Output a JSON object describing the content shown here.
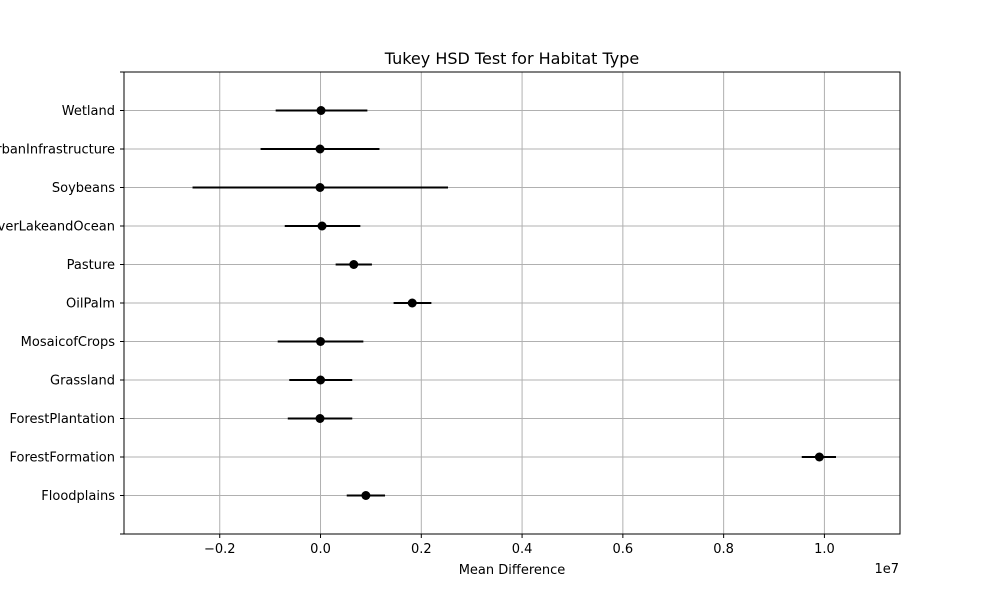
{
  "chart_data": {
    "type": "errorbar",
    "title": "Tukey HSD Test for Habitat Type",
    "xlabel": "Mean Difference",
    "ylabel": "",
    "x_offset_label": "1e7",
    "x_scale_factor": 10000000,
    "xlim": [
      -3900000,
      11500000
    ],
    "xticks": [
      -2000000,
      0,
      2000000,
      4000000,
      6000000,
      8000000,
      10000000
    ],
    "xtick_labels": [
      "−0.2",
      "0.0",
      "0.2",
      "0.4",
      "0.6",
      "0.8",
      "1.0"
    ],
    "grid": true,
    "marker_color": "#000000",
    "categories": [
      "Floodplains",
      "ForestFormation",
      "ForestPlantation",
      "Grassland",
      "MosaicofCrops",
      "OilPalm",
      "Pasture",
      "RiverLakeandOcean",
      "Soybeans",
      "UrbanInfrastructure",
      "Wetland"
    ],
    "points": [
      {
        "category": "Floodplains",
        "mean": 900000,
        "lower": 520000,
        "upper": 1280000
      },
      {
        "category": "ForestFormation",
        "mean": 9900000,
        "lower": 9550000,
        "upper": 10230000
      },
      {
        "category": "ForestPlantation",
        "mean": -10000,
        "lower": -650000,
        "upper": 630000
      },
      {
        "category": "Grassland",
        "mean": 0,
        "lower": -620000,
        "upper": 630000
      },
      {
        "category": "MosaicofCrops",
        "mean": 0,
        "lower": -850000,
        "upper": 850000
      },
      {
        "category": "OilPalm",
        "mean": 1820000,
        "lower": 1450000,
        "upper": 2200000
      },
      {
        "category": "Pasture",
        "mean": 660000,
        "lower": 300000,
        "upper": 1020000
      },
      {
        "category": "RiverLakeandOcean",
        "mean": 30000,
        "lower": -710000,
        "upper": 790000
      },
      {
        "category": "Soybeans",
        "mean": -10000,
        "lower": -2540000,
        "upper": 2530000
      },
      {
        "category": "UrbanInfrastructure",
        "mean": -10000,
        "lower": -1190000,
        "upper": 1170000
      },
      {
        "category": "Wetland",
        "mean": 10000,
        "lower": -890000,
        "upper": 930000
      }
    ]
  }
}
